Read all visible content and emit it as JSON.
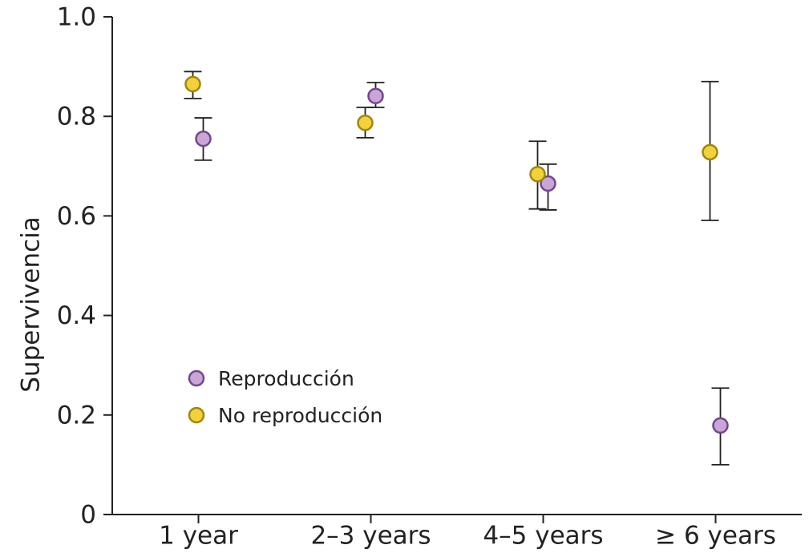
{
  "chart_data": {
    "type": "scatter",
    "y_label": "Supervivencia",
    "categories": [
      "1 year",
      "2–3 years",
      "4–5 years",
      "≥ 6 years"
    ],
    "ylim": [
      0,
      1
    ],
    "yticks": [
      0,
      0.2,
      0.4,
      0.6,
      0.8,
      {
        "value": 1,
        "label": "1.0"
      }
    ],
    "series": [
      {
        "name": "Reproducción",
        "color": "#c8a6d8",
        "values": [
          0.755,
          0.841,
          0.665,
          0.179
        ],
        "ci_low": [
          0.712,
          0.818,
          0.612,
          0.1
        ],
        "ci_high": [
          0.797,
          0.868,
          0.704,
          0.254
        ]
      },
      {
        "name": "No reproducción",
        "color": "#f2d23a",
        "values": [
          0.865,
          0.787,
          0.684,
          0.728
        ],
        "ci_low": [
          0.836,
          0.757,
          0.614,
          0.591
        ],
        "ci_high": [
          0.89,
          0.818,
          0.75,
          0.87
        ]
      }
    ]
  }
}
